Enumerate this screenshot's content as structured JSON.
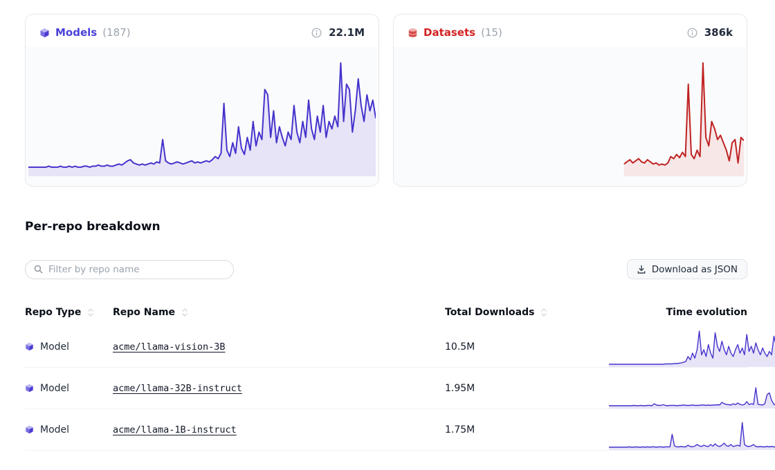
{
  "cards": {
    "models": {
      "title": "Models",
      "count": "(187)",
      "total": "22.1M",
      "accent": "#4a42d8",
      "chart": {
        "line": "#4433cc",
        "fill": "#e7e4f8",
        "start": 0,
        "values": [
          2,
          2,
          2,
          2,
          2,
          2,
          2,
          3,
          2,
          2,
          2,
          3,
          2,
          2,
          3,
          2,
          3,
          2,
          2,
          3,
          3,
          2,
          3,
          3,
          4,
          3,
          3,
          4,
          3,
          3,
          4,
          5,
          4,
          6,
          8,
          9,
          6,
          5,
          4,
          5,
          4,
          5,
          6,
          5,
          7,
          6,
          28,
          8,
          6,
          5,
          6,
          7,
          6,
          5,
          6,
          7,
          8,
          6,
          7,
          6,
          7,
          8,
          7,
          9,
          12,
          10,
          15,
          62,
          18,
          12,
          25,
          15,
          40,
          20,
          14,
          30,
          18,
          45,
          22,
          35,
          28,
          75,
          70,
          30,
          55,
          25,
          40,
          30,
          22,
          35,
          28,
          60,
          35,
          25,
          45,
          30,
          65,
          38,
          28,
          50,
          35,
          60,
          30,
          45,
          38,
          50,
          40,
          100,
          45,
          80,
          75,
          35,
          55,
          85,
          60,
          45,
          70,
          55,
          65,
          48
        ]
      }
    },
    "datasets": {
      "title": "Datasets",
      "count": "(15)",
      "total": "386k",
      "accent": "#d32222",
      "chart": {
        "line": "#bf2222",
        "fill": "#f7e7e7",
        "start": 0.655,
        "values": [
          5,
          7,
          9,
          6,
          8,
          10,
          7,
          6,
          9,
          7,
          5,
          6,
          4,
          5,
          4,
          6,
          12,
          10,
          14,
          11,
          16,
          12,
          80,
          14,
          10,
          18,
          12,
          100,
          30,
          22,
          45,
          38,
          28,
          32,
          25,
          18,
          8,
          25,
          28,
          6,
          30,
          27
        ]
      }
    }
  },
  "section": {
    "title": "Per-repo breakdown"
  },
  "filter": {
    "placeholder": "Filter by repo name"
  },
  "download_button": {
    "label": "Download as JSON"
  },
  "table": {
    "columns": [
      {
        "label": "Repo Type",
        "sortable": true
      },
      {
        "label": "Repo Name",
        "sortable": true
      },
      {
        "label": "Total Downloads",
        "sortable": true
      },
      {
        "label": "Time evolution",
        "sortable": false
      }
    ],
    "rows": [
      {
        "type": "Model",
        "name": "acme/llama-vision-3B",
        "downloads": "10.5M",
        "spark": {
          "line": "#4433cc",
          "fill": "#e7e4f8",
          "start": 0,
          "values": [
            2,
            2,
            2,
            2,
            2,
            2,
            2,
            2,
            2,
            2,
            2,
            2,
            2,
            2,
            2,
            2,
            2,
            2,
            2,
            2,
            2,
            2,
            2,
            2,
            2,
            3,
            3,
            3,
            3,
            4,
            4,
            5,
            6,
            8,
            10,
            25,
            15,
            35,
            20,
            45,
            100,
            30,
            45,
            25,
            60,
            35,
            20,
            95,
            55,
            40,
            70,
            45,
            30,
            55,
            35,
            25,
            45,
            60,
            35,
            50,
            30,
            90,
            40,
            55,
            35,
            65,
            45,
            30,
            50,
            35,
            25,
            40,
            30,
            85,
            55,
            35,
            45,
            90,
            60,
            20
          ]
        }
      },
      {
        "type": "Model",
        "name": "acme/llama-32B-instruct",
        "downloads": "1.95M",
        "spark": {
          "line": "#4433cc",
          "fill": "#e7e4f8",
          "start": 0,
          "values": [
            2,
            2,
            2,
            2,
            2,
            2,
            2,
            2,
            2,
            2,
            2,
            3,
            2,
            2,
            3,
            2,
            2,
            3,
            3,
            2,
            8,
            4,
            3,
            3,
            5,
            3,
            2,
            3,
            3,
            3,
            2,
            3,
            3,
            4,
            3,
            3,
            3,
            4,
            3,
            3,
            3,
            4,
            4,
            3,
            4,
            3,
            4,
            4,
            5,
            4,
            12,
            8,
            6,
            5,
            4,
            8,
            5,
            10,
            6,
            4,
            6,
            14,
            5,
            8,
            6,
            55,
            6,
            5,
            4,
            8,
            35,
            40,
            18,
            6,
            4,
            3,
            3,
            4,
            3,
            3
          ]
        }
      },
      {
        "type": "Model",
        "name": "acme/llama-1B-instruct",
        "downloads": "1.75M",
        "spark": {
          "line": "#4433cc",
          "fill": "#e7e4f8",
          "start": 0,
          "values": [
            2,
            2,
            2,
            2,
            2,
            2,
            2,
            2,
            2,
            3,
            2,
            2,
            3,
            2,
            2,
            3,
            2,
            3,
            2,
            3,
            3,
            2,
            3,
            3,
            2,
            3,
            3,
            3,
            40,
            6,
            3,
            3,
            4,
            3,
            3,
            8,
            4,
            3,
            5,
            10,
            6,
            4,
            8,
            5,
            4,
            10,
            5,
            12,
            6,
            4,
            8,
            14,
            6,
            5,
            10,
            4,
            6,
            8,
            5,
            75,
            10,
            5,
            4,
            6,
            10,
            4,
            3,
            4,
            3,
            3,
            4,
            3,
            4,
            3,
            3,
            4,
            3,
            3,
            8,
            5
          ]
        }
      }
    ]
  }
}
